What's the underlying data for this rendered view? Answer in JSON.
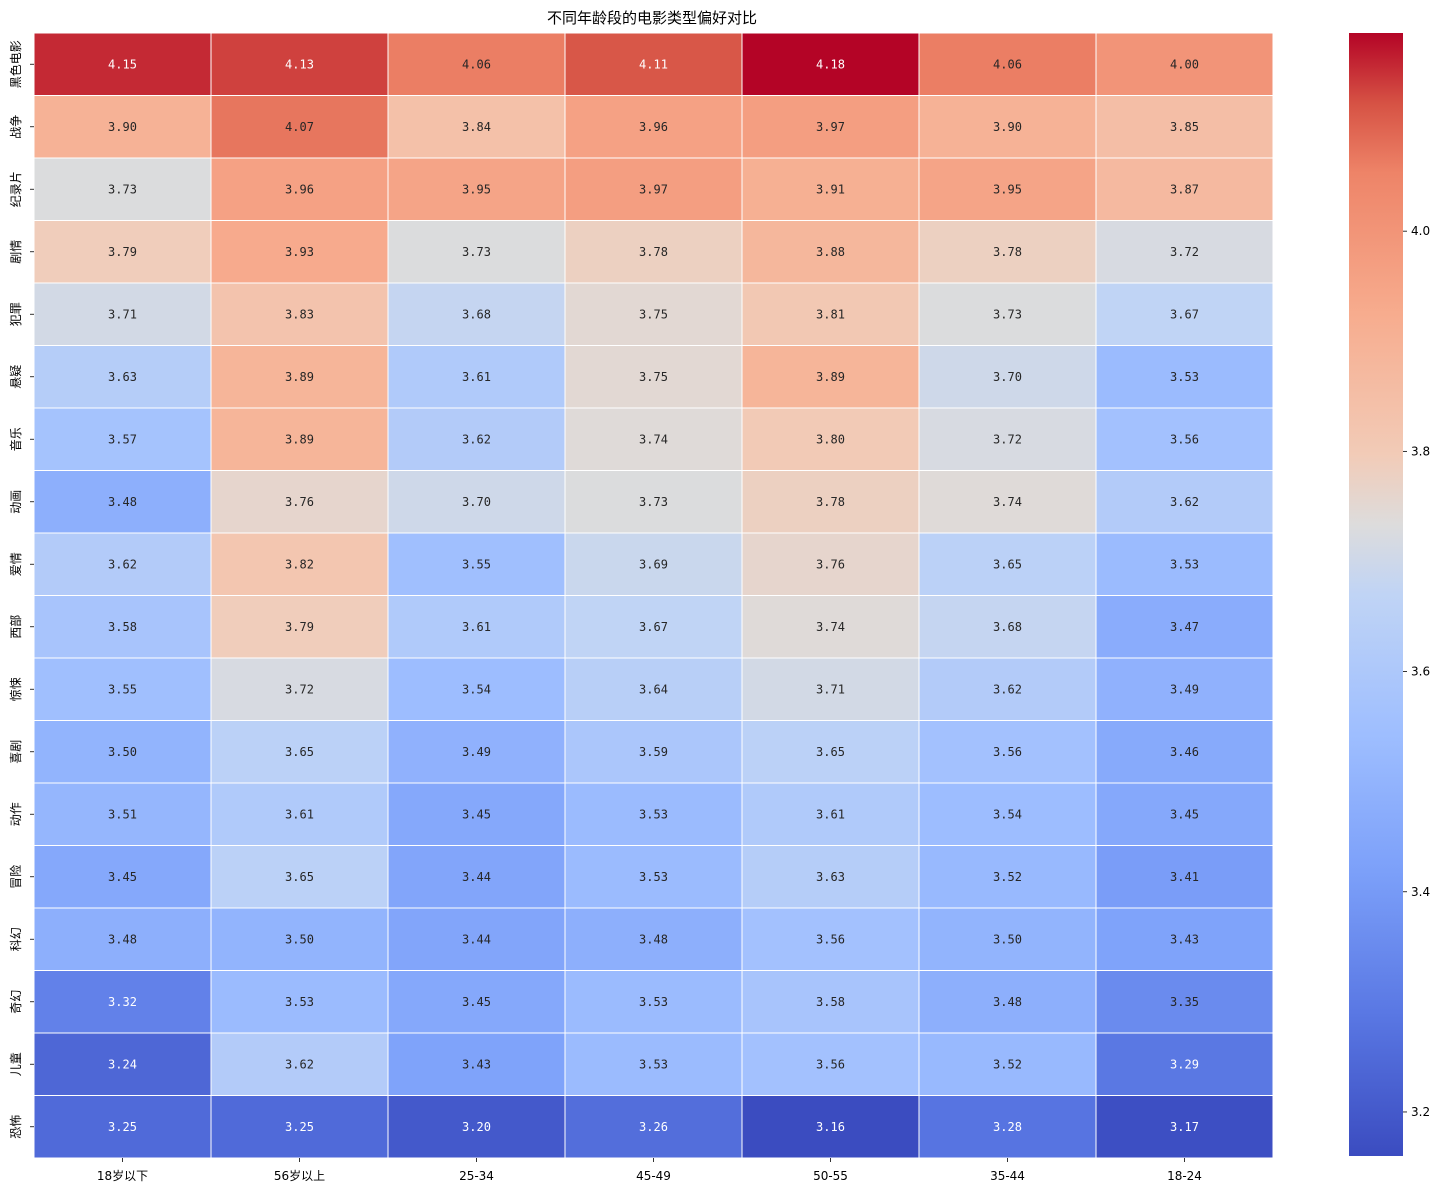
{
  "chart_data": {
    "type": "heatmap",
    "title": "不同年龄段的电影类型偏好对比",
    "xlabel": "",
    "ylabel": "",
    "colormap": "coolwarm",
    "color_range": [
      3.16,
      4.18
    ],
    "colorbar_ticks": [
      3.2,
      3.4,
      3.6,
      3.8,
      4.0
    ],
    "colorbar_tick_labels": [
      "3.2",
      "3.4",
      "3.6",
      "3.8",
      "4.0"
    ],
    "x_categories": [
      "18岁以下",
      "56岁以上",
      "25-34",
      "45-49",
      "50-55",
      "35-44",
      "18-24"
    ],
    "y_categories": [
      "黑色电影",
      "战争",
      "纪录片",
      "剧情",
      "犯罪",
      "悬疑",
      "音乐",
      "动画",
      "爱情",
      "西部",
      "惊悚",
      "喜剧",
      "动作",
      "冒险",
      "科幻",
      "奇幻",
      "儿童",
      "恐怖"
    ],
    "values": [
      [
        4.15,
        4.13,
        4.06,
        4.11,
        4.18,
        4.06,
        4.0
      ],
      [
        3.9,
        4.07,
        3.84,
        3.96,
        3.97,
        3.9,
        3.85
      ],
      [
        3.73,
        3.96,
        3.95,
        3.97,
        3.91,
        3.95,
        3.87
      ],
      [
        3.79,
        3.93,
        3.73,
        3.78,
        3.88,
        3.78,
        3.72
      ],
      [
        3.71,
        3.83,
        3.68,
        3.75,
        3.81,
        3.73,
        3.67
      ],
      [
        3.63,
        3.89,
        3.61,
        3.75,
        3.89,
        3.7,
        3.53
      ],
      [
        3.57,
        3.89,
        3.62,
        3.74,
        3.8,
        3.72,
        3.56
      ],
      [
        3.48,
        3.76,
        3.7,
        3.73,
        3.78,
        3.74,
        3.62
      ],
      [
        3.62,
        3.82,
        3.55,
        3.69,
        3.76,
        3.65,
        3.53
      ],
      [
        3.58,
        3.79,
        3.61,
        3.67,
        3.74,
        3.68,
        3.47
      ],
      [
        3.55,
        3.72,
        3.54,
        3.64,
        3.71,
        3.62,
        3.49
      ],
      [
        3.5,
        3.65,
        3.49,
        3.59,
        3.65,
        3.56,
        3.46
      ],
      [
        3.51,
        3.61,
        3.45,
        3.53,
        3.61,
        3.54,
        3.45
      ],
      [
        3.45,
        3.65,
        3.44,
        3.53,
        3.63,
        3.52,
        3.41
      ],
      [
        3.48,
        3.5,
        3.44,
        3.48,
        3.56,
        3.5,
        3.43
      ],
      [
        3.32,
        3.53,
        3.45,
        3.53,
        3.58,
        3.48,
        3.35
      ],
      [
        3.24,
        3.62,
        3.43,
        3.53,
        3.56,
        3.52,
        3.29
      ],
      [
        3.25,
        3.25,
        3.2,
        3.26,
        3.16,
        3.28,
        3.17
      ]
    ],
    "value_format": "0.00",
    "annotated": true,
    "grid": false,
    "legend": "colorbar-right"
  }
}
